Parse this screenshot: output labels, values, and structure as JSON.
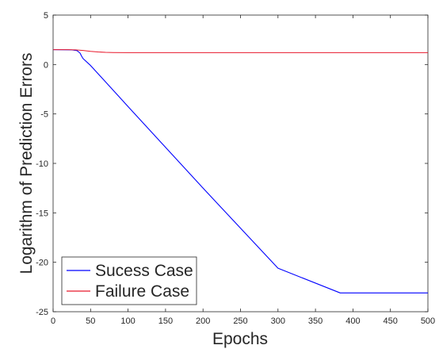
{
  "chart_data": {
    "type": "line",
    "xlabel": "Epochs",
    "ylabel": "Logarithm of Prediction Errors",
    "xlim": [
      0,
      500
    ],
    "ylim": [
      -25,
      5
    ],
    "xticks": [
      0,
      50,
      100,
      150,
      200,
      250,
      300,
      350,
      400,
      450,
      500
    ],
    "yticks": [
      5,
      0,
      -5,
      -10,
      -15,
      -20,
      -25
    ],
    "xtick_labels": [
      "0",
      "50",
      "100",
      "150",
      "200",
      "250",
      "300",
      "350",
      "400",
      "450",
      "500"
    ],
    "ytick_labels": [
      "5",
      "0",
      "-5",
      "-10",
      "-15",
      "-20",
      "-25"
    ],
    "grid": false,
    "legend_position": "bottom-left",
    "series": [
      {
        "name": "Sucess Case",
        "color": "#0000ff",
        "x": [
          0,
          25,
          32,
          36,
          38,
          40,
          50,
          100,
          200,
          300,
          383,
          400,
          450,
          500
        ],
        "y": [
          1.5,
          1.48,
          1.4,
          1.15,
          0.85,
          0.6,
          -0.1,
          -4.25,
          -12.5,
          -20.6,
          -23.1,
          -23.1,
          -23.1,
          -23.1
        ]
      },
      {
        "name": "Failure Case",
        "color": "#e8192c",
        "x": [
          0,
          20,
          30,
          40,
          50,
          60,
          70,
          80,
          100,
          150,
          200,
          300,
          400,
          500
        ],
        "y": [
          1.5,
          1.5,
          1.48,
          1.42,
          1.33,
          1.27,
          1.23,
          1.21,
          1.2,
          1.2,
          1.2,
          1.2,
          1.2,
          1.2
        ]
      }
    ]
  }
}
